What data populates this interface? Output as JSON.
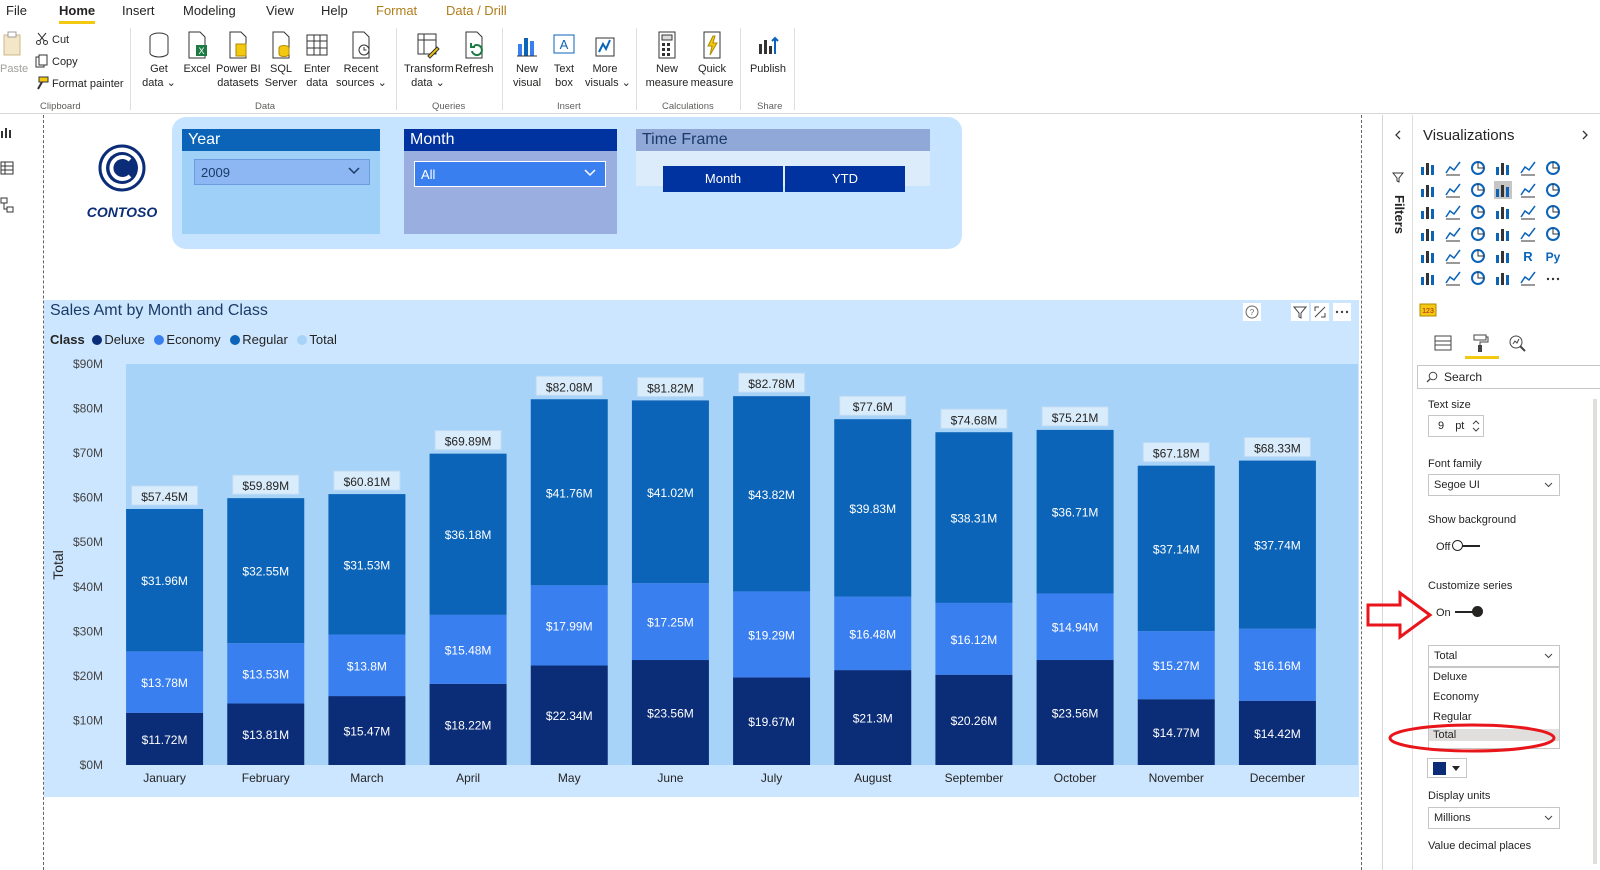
{
  "menu": {
    "items": [
      "File",
      "Home",
      "Insert",
      "Modeling",
      "View",
      "Help",
      "Format",
      "Data / Drill"
    ],
    "active": "Home"
  },
  "ribbon": {
    "clipboard": {
      "paste": "Paste",
      "cut": "Cut",
      "copy": "Copy",
      "format_painter": "Format painter",
      "group": "Clipboard"
    },
    "data": {
      "get_data": [
        "Get",
        "data"
      ],
      "excel": "Excel",
      "powerbi": [
        "Power BI",
        "datasets"
      ],
      "sql": [
        "SQL",
        "Server"
      ],
      "enter": [
        "Enter",
        "data"
      ],
      "recent": [
        "Recent",
        "sources"
      ],
      "group": "Data"
    },
    "queries": {
      "transform": [
        "Transform",
        "data"
      ],
      "refresh": "Refresh",
      "group": "Queries"
    },
    "insert": {
      "new_visual": [
        "New",
        "visual"
      ],
      "text_box": [
        "Text",
        "box"
      ],
      "more": [
        "More",
        "visuals"
      ],
      "group": "Insert"
    },
    "calculations": {
      "new_measure": [
        "New",
        "measure"
      ],
      "quick": [
        "Quick",
        "measure"
      ],
      "group": "Calculations"
    },
    "share": {
      "publish": "Publish",
      "group": "Share"
    }
  },
  "logo": {
    "text": "CONTOSO"
  },
  "slicers": {
    "year": {
      "title": "Year",
      "value": "2009"
    },
    "month": {
      "title": "Month",
      "value": "All"
    },
    "timeframe": {
      "title": "Time Frame",
      "options": [
        "Month",
        "YTD"
      ]
    }
  },
  "visual": {
    "title": "Sales Amt by Month and Class",
    "legend_title": "Class",
    "legend": [
      {
        "name": "Deluxe",
        "color": "#0b2c77"
      },
      {
        "name": "Economy",
        "color": "#3a7ff0"
      },
      {
        "name": "Regular",
        "color": "#0b64b8"
      },
      {
        "name": "Total",
        "color": "#a7d3f8"
      }
    ]
  },
  "chart_data": {
    "type": "bar",
    "stacked": true,
    "title": "Sales Amt by Month and Class",
    "ylabel": "Total",
    "xlabel": "",
    "ylim": [
      0,
      90
    ],
    "yticks": [
      "$0M",
      "$10M",
      "$20M",
      "$30M",
      "$40M",
      "$50M",
      "$60M",
      "$70M",
      "$80M",
      "$90M"
    ],
    "categories": [
      "January",
      "February",
      "March",
      "April",
      "May",
      "June",
      "July",
      "August",
      "September",
      "October",
      "November",
      "December"
    ],
    "series": [
      {
        "name": "Deluxe",
        "color": "#0b2c77",
        "values": [
          11.72,
          13.81,
          15.47,
          18.22,
          22.34,
          23.56,
          19.67,
          21.3,
          20.26,
          23.56,
          14.77,
          14.42
        ],
        "labels": [
          "$11.72M",
          "$13.81M",
          "$15.47M",
          "$18.22M",
          "$22.34M",
          "$23.56M",
          "$19.67M",
          "$21.3M",
          "$20.26M",
          "$23.56M",
          "$14.77M",
          "$14.42M"
        ]
      },
      {
        "name": "Economy",
        "color": "#3a7ff0",
        "values": [
          13.78,
          13.53,
          13.8,
          15.48,
          17.99,
          17.25,
          19.29,
          16.48,
          16.12,
          14.94,
          15.27,
          16.16
        ],
        "labels": [
          "$13.78M",
          "$13.53M",
          "$13.8M",
          "$15.48M",
          "$17.99M",
          "$17.25M",
          "$19.29M",
          "$16.48M",
          "$16.12M",
          "$14.94M",
          "$15.27M",
          "$16.16M"
        ]
      },
      {
        "name": "Regular",
        "color": "#0b64b8",
        "values": [
          31.96,
          32.55,
          31.53,
          36.18,
          41.76,
          41.02,
          43.82,
          39.83,
          38.31,
          36.71,
          37.14,
          37.74
        ],
        "labels": [
          "$31.96M",
          "$32.55M",
          "$31.53M",
          "$36.18M",
          "$41.76M",
          "$41.02M",
          "$43.82M",
          "$39.83M",
          "$38.31M",
          "$36.71M",
          "$37.14M",
          "$37.74M"
        ]
      }
    ],
    "totals": {
      "values": [
        57.45,
        59.89,
        60.81,
        69.89,
        82.08,
        81.82,
        82.78,
        77.6,
        74.68,
        75.21,
        67.18,
        68.33
      ],
      "labels": [
        "$57.45M",
        "$59.89M",
        "$60.81M",
        "$69.89M",
        "$82.08M",
        "$81.82M",
        "$82.78M",
        "$77.6M",
        "$74.68M",
        "$75.21M",
        "$67.18M",
        "$68.33M"
      ]
    }
  },
  "pane": {
    "filters": "Filters",
    "title": "Visualizations",
    "search_placeholder": "Search",
    "text_size_label": "Text size",
    "text_size_value": "9",
    "text_size_unit": "pt",
    "font_family_label": "Font family",
    "font_family_value": "Segoe UI",
    "show_background_label": "Show background",
    "show_background_state": "Off",
    "customize_series_label": "Customize series",
    "customize_series_state": "On",
    "series_select_value": "Total",
    "series_options": [
      "Deluxe",
      "Economy",
      "Regular",
      "Total"
    ],
    "display_units_label": "Display units",
    "display_units_value": "Millions",
    "value_decimal_label": "Value decimal places",
    "swatch_color": "#0b2c77",
    "accent_color": "#f2c811"
  },
  "annotations": {
    "arrow_color": "#e8161b",
    "highlight": "Total"
  }
}
